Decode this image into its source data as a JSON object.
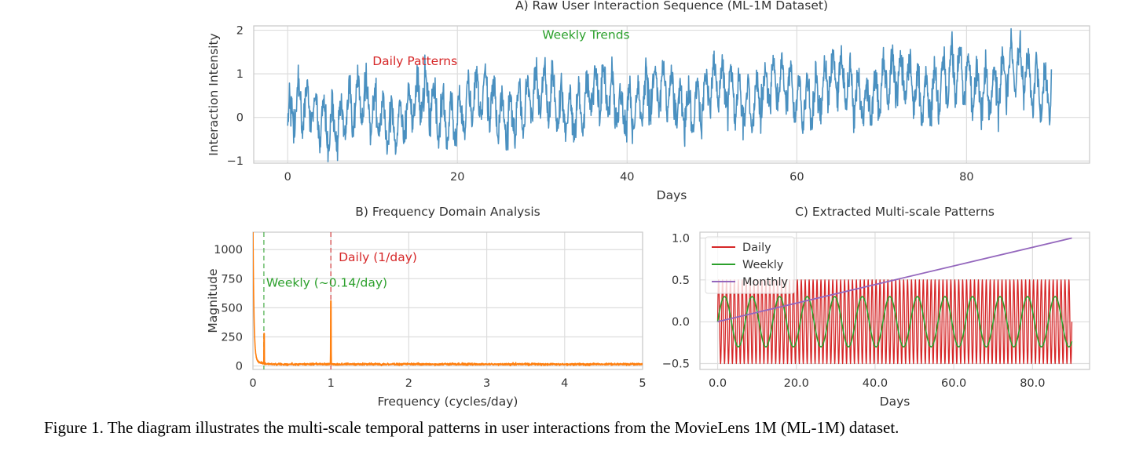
{
  "figure": {
    "caption": "Figure 1.  The diagram illustrates the multi-scale temporal patterns in user interactions from the MovieLens 1M (ML-1M) dataset."
  },
  "colors": {
    "raw": "#4a90c0",
    "fft": "#ff7f0e",
    "daily": "#d62728",
    "weekly": "#2ca02c",
    "monthly": "#9467bd",
    "grid": "#dddddd",
    "axes_edge": "#cccccc",
    "text": "#333333"
  },
  "chart_data": [
    {
      "id": "A",
      "type": "line",
      "title": "A) Raw User Interaction Sequence (ML-1M Dataset)",
      "xlabel": "Days",
      "ylabel": "Interaction Intensity",
      "xlim": [
        -4,
        94.5
      ],
      "ylim": [
        -1.05,
        2.1
      ],
      "xticks": [
        0,
        20,
        40,
        60,
        80
      ],
      "yticks": [
        -1,
        0,
        1,
        2
      ],
      "grid": true,
      "annotations": [
        {
          "text": "Daily Patterns",
          "x": 10,
          "y": 1.2,
          "color": "#d62728"
        },
        {
          "text": "Weekly Trends",
          "x": 30,
          "y": 1.8,
          "color": "#2ca02c"
        }
      ],
      "series": [
        {
          "description": "0.5*sin(2*pi*t) + 0.3*sin(2*pi*t/7) + 0.01*t + noise, t in [0, 90] days, hourly samples",
          "x_range": [
            0,
            90
          ],
          "y_range_observed": [
            -0.92,
            1.95
          ]
        }
      ]
    },
    {
      "id": "B",
      "type": "line",
      "title": "B) Frequency Domain Analysis",
      "xlabel": "Frequency (cycles/day)",
      "ylabel": "Magnitude",
      "xlim": [
        0,
        5
      ],
      "ylim": [
        -30,
        1150
      ],
      "xticks": [
        0,
        1,
        2,
        3,
        4,
        5
      ],
      "yticks": [
        0,
        250,
        500,
        750,
        1000
      ],
      "grid": true,
      "vlines": [
        {
          "x": 0.14,
          "color": "#2ca02c",
          "style": "dashed"
        },
        {
          "x": 1.0,
          "color": "#d62728",
          "style": "dashed"
        }
      ],
      "annotations": [
        {
          "text": "Daily (1/day)",
          "x": 1.1,
          "y": 900,
          "color": "#d62728"
        },
        {
          "text": "Weekly (~0.14/day)",
          "x": 0.17,
          "y": 680,
          "color": "#2ca02c"
        }
      ],
      "peaks": [
        {
          "x": 0.0,
          "y": 1150
        },
        {
          "x": 0.143,
          "y": 280
        },
        {
          "x": 1.0,
          "y": 560
        }
      ],
      "noise_floor": 15
    },
    {
      "id": "C",
      "type": "line",
      "title": "C) Extracted Multi-scale Patterns",
      "xlabel": "Days",
      "ylabel": "",
      "xlim": [
        -4.5,
        94.5
      ],
      "ylim": [
        -0.57,
        1.07
      ],
      "xticks": [
        0,
        20,
        40,
        60,
        80
      ],
      "yticks": [
        -0.5,
        0.0,
        0.5,
        1.0
      ],
      "grid": true,
      "legend": "top-left",
      "series": [
        {
          "name": "Daily",
          "color": "#d62728",
          "description": "0.5*sin(2*pi*t), t in [0, 90]"
        },
        {
          "name": "Weekly",
          "color": "#2ca02c",
          "description": "0.3*sin(2*pi*t/7), t in [0, 90]"
        },
        {
          "name": "Monthly",
          "color": "#9467bd",
          "x": [
            0,
            90
          ],
          "y": [
            0.0,
            1.0
          ]
        }
      ]
    }
  ]
}
